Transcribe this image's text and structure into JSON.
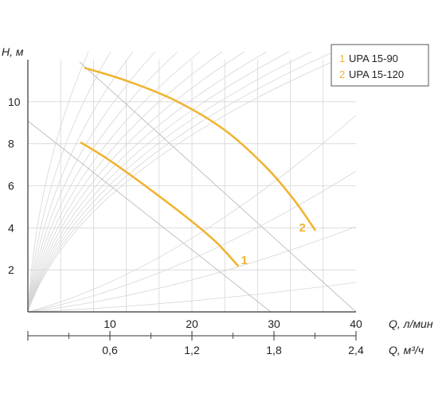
{
  "chart_data": {
    "type": "line",
    "ylabel": "H, м",
    "xlabel": "Q, л/мин",
    "x2label": "Q, м³/ч",
    "xlim": [
      0,
      40
    ],
    "ylim": [
      0,
      12
    ],
    "yticks": [
      "2",
      "4",
      "6",
      "8",
      "10"
    ],
    "xticks": [
      "10",
      "20",
      "30",
      "40"
    ],
    "x2ticks": [
      "0,6",
      "1,2",
      "1,8",
      "2,4"
    ],
    "grid": true,
    "legend_position": "top-right",
    "series": [
      {
        "name": "UPA 15-90",
        "marker": "1",
        "color": "#F0B432",
        "points": [
          [
            6.5,
            8.05
          ],
          [
            10,
            7.2
          ],
          [
            15,
            5.8
          ],
          [
            20,
            4.3
          ],
          [
            23,
            3.3
          ],
          [
            25.6,
            2.2
          ]
        ]
      },
      {
        "name": "UPA 15-120",
        "marker": "2",
        "color": "#F0B432",
        "points": [
          [
            7,
            11.6
          ],
          [
            12,
            11.0
          ],
          [
            18,
            10.05
          ],
          [
            24,
            8.65
          ],
          [
            29,
            6.9
          ],
          [
            32.5,
            5.3
          ],
          [
            35,
            3.9
          ]
        ]
      }
    ]
  }
}
